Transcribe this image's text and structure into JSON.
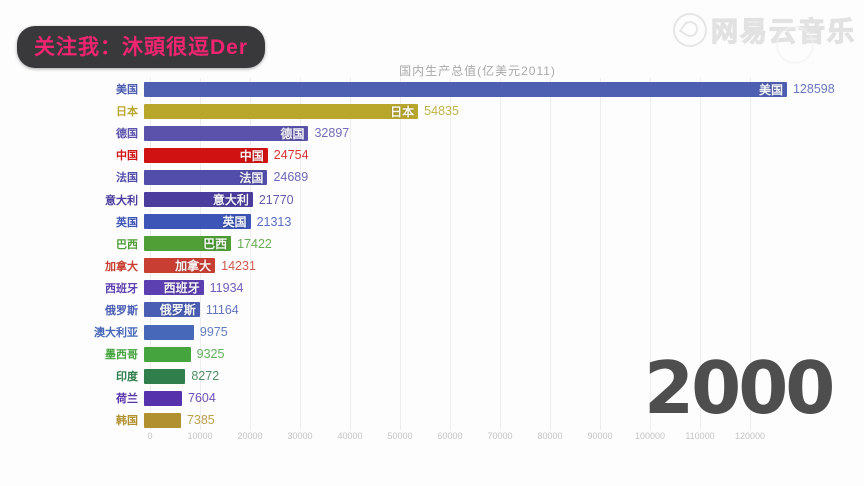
{
  "overlay": {
    "banner_text": "关注我：沐頭很逗Der",
    "watermark_text": "网易云音乐"
  },
  "chart_data": {
    "type": "bar",
    "orientation": "horizontal",
    "title": "国内生产总值(亿美元2011)",
    "year_label": "2000",
    "xlabel": "",
    "ylabel": "",
    "xlim": [
      0,
      130000
    ],
    "x_ticks": [
      0,
      10000,
      20000,
      30000,
      40000,
      50000,
      60000,
      70000,
      80000,
      90000,
      100000,
      110000,
      120000
    ],
    "grid": true,
    "categories": [
      "美国",
      "日本",
      "德国",
      "中国",
      "法国",
      "意大利",
      "英国",
      "巴西",
      "加拿大",
      "西班牙",
      "俄罗斯",
      "澳大利亚",
      "墨西哥",
      "印度",
      "荷兰",
      "韩国"
    ],
    "values": [
      128598,
      54835,
      32897,
      24754,
      24689,
      21770,
      21313,
      17422,
      14231,
      11934,
      11164,
      9975,
      9325,
      8272,
      7604,
      7385
    ],
    "colors": [
      "#4e5fb2",
      "#b9a72c",
      "#5a52ab",
      "#d01212",
      "#524daa",
      "#4a3d9e",
      "#3c55b7",
      "#4f9e36",
      "#c93e33",
      "#5c3fb0",
      "#4a5eb4",
      "#4767b8",
      "#45a43e",
      "#2f7e4b",
      "#5632ac",
      "#b1912f"
    ],
    "inner_labels_visible": [
      true,
      true,
      true,
      true,
      true,
      true,
      true,
      true,
      true,
      true,
      true,
      false,
      false,
      false,
      false,
      false
    ]
  }
}
